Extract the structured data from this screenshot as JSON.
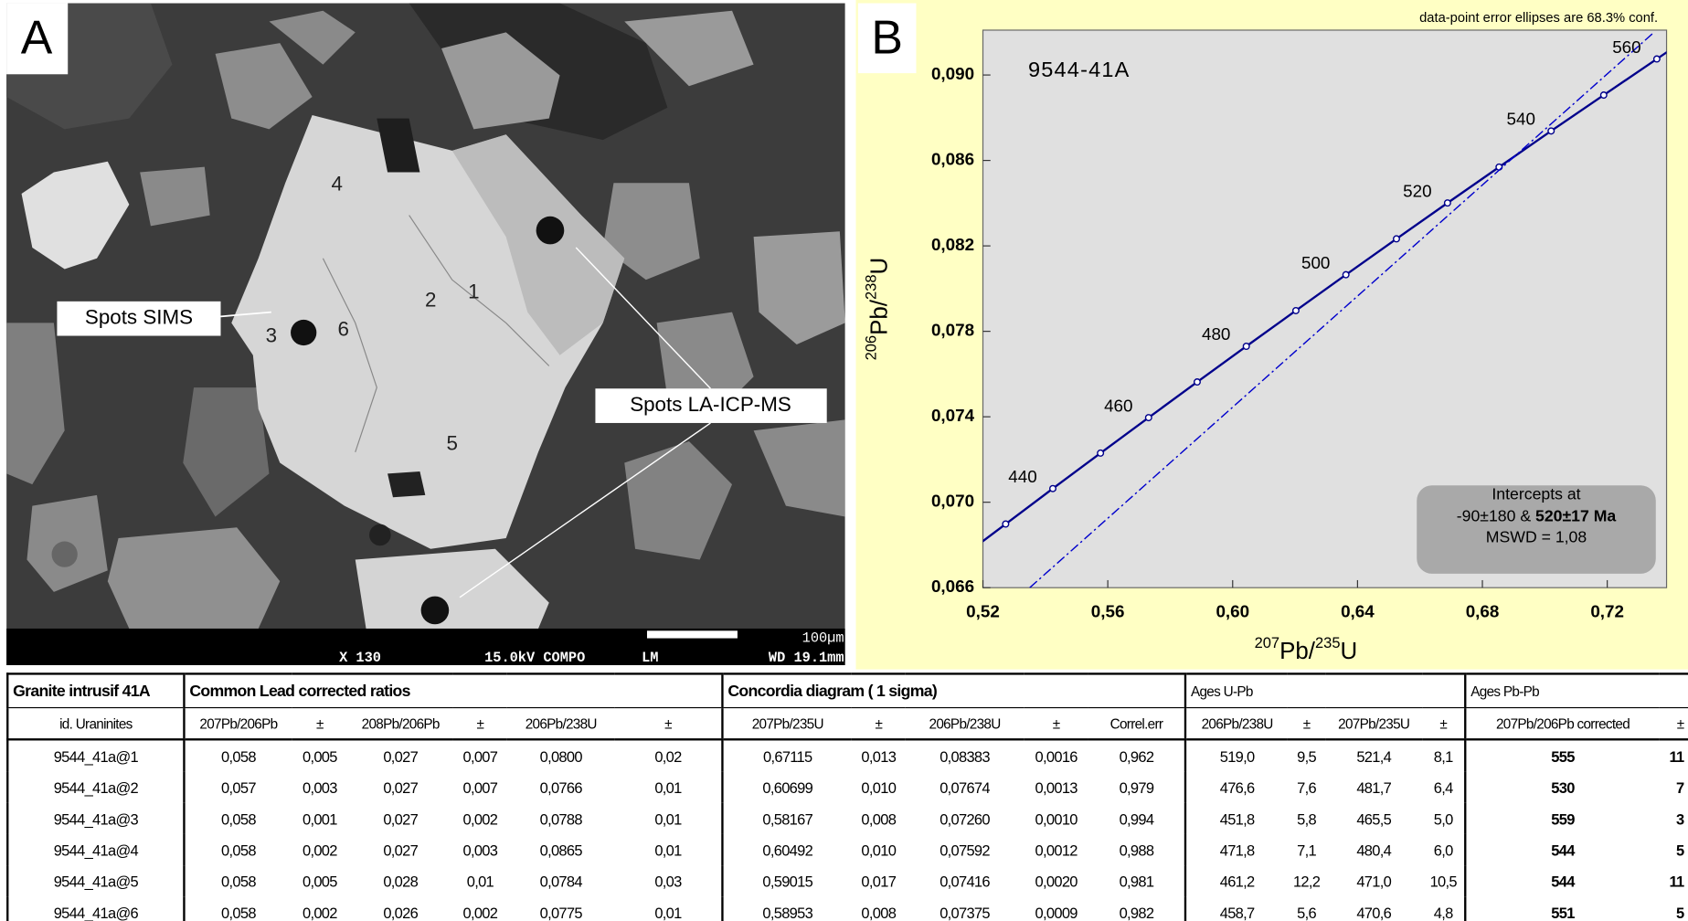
{
  "panel_a": {
    "label": "A",
    "spot_labels": [
      "Spots SIMS",
      "Spots LA-ICP-MS"
    ],
    "spot_numbers": [
      "1",
      "2",
      "3",
      "4",
      "5",
      "6"
    ],
    "scale_bar": "100µm",
    "info": [
      "X 130",
      "15.0kV COMPO",
      "LM",
      "WD 19.1mm"
    ]
  },
  "chart_data": {
    "type": "line",
    "panel_label": "B",
    "title": "9544-41A",
    "note": "data-point error ellipses are 68.3% conf.",
    "xlabel": [
      "207",
      "Pb/",
      "235",
      "U"
    ],
    "ylabel": [
      "206",
      "Pb/",
      "238",
      "U"
    ],
    "xlim": [
      0.52,
      0.739
    ],
    "ylim": [
      0.066,
      0.0921
    ],
    "xticks": [
      {
        "value": 0.52,
        "label": "0,52"
      },
      {
        "value": 0.56,
        "label": "0,56"
      },
      {
        "value": 0.6,
        "label": "0,60"
      },
      {
        "value": 0.64,
        "label": "0,64"
      },
      {
        "value": 0.68,
        "label": "0,68"
      },
      {
        "value": 0.72,
        "label": "0,72"
      }
    ],
    "yticks": [
      {
        "value": 0.066,
        "label": "0,066"
      },
      {
        "value": 0.07,
        "label": "0,070"
      },
      {
        "value": 0.074,
        "label": "0,074"
      },
      {
        "value": 0.078,
        "label": "0,078"
      },
      {
        "value": 0.082,
        "label": "0,082"
      },
      {
        "value": 0.086,
        "label": "0,086"
      },
      {
        "value": 0.09,
        "label": "0,090"
      }
    ],
    "series": [
      {
        "color": "#00008b",
        "ages": [
          430,
          440,
          450,
          460,
          470,
          480,
          490,
          500,
          510,
          520,
          530,
          540,
          550,
          560
        ],
        "x": [
          0.52728,
          0.54239,
          0.55766,
          0.57307,
          0.58864,
          0.60437,
          0.62025,
          0.63628,
          0.65247,
          0.66883,
          0.68535,
          0.70202,
          0.71887,
          0.73588
        ],
        "y": [
          0.06898,
          0.07064,
          0.0723,
          0.07396,
          0.07563,
          0.0773,
          0.07897,
          0.08065,
          0.08233,
          0.08401,
          0.08569,
          0.08738,
          0.08906,
          0.09075
        ],
        "labeled_ages": [
          440,
          460,
          480,
          500,
          520,
          540,
          560
        ]
      },
      {
        "color": "#0000cc",
        "dash": true,
        "x": [
          0.535,
          0.735
        ],
        "y": [
          0.066,
          0.092
        ]
      }
    ],
    "annotation": [
      "Intercepts at",
      "-90±180 & ",
      "520±17 Ma",
      "MSWD = 1,08"
    ]
  },
  "table": {
    "groups": [
      "Granite intrusif 41A",
      "Common Lead corrected ratios",
      "Concordia diagram ( 1 sigma)",
      "Ages U-Pb",
      "Ages Pb-Pb"
    ],
    "columns": [
      "id. Uraninites",
      "207Pb/206Pb",
      "±",
      "208Pb/206Pb",
      "±",
      "206Pb/238U",
      "±",
      "207Pb/235U",
      "±",
      "206Pb/238U",
      "±",
      "Correl.err",
      "206Pb/238U",
      "±",
      "207Pb/235U",
      "±",
      "207Pb/206Pb corrected",
      "±"
    ],
    "rows": [
      [
        "9544_41a@1",
        "0,058",
        "0,005",
        "0,027",
        "0,007",
        "0,0800",
        "0,02",
        "0,67115",
        "0,013",
        "0,08383",
        "0,0016",
        "0,962",
        "519,0",
        "9,5",
        "521,4",
        "8,1",
        "555",
        "11"
      ],
      [
        "9544_41a@2",
        "0,057",
        "0,003",
        "0,027",
        "0,007",
        "0,0766",
        "0,01",
        "0,60699",
        "0,010",
        "0,07674",
        "0,0013",
        "0,979",
        "476,6",
        "7,6",
        "481,7",
        "6,4",
        "530",
        "7"
      ],
      [
        "9544_41a@3",
        "0,058",
        "0,001",
        "0,027",
        "0,002",
        "0,0788",
        "0,01",
        "0,58167",
        "0,008",
        "0,07260",
        "0,0010",
        "0,994",
        "451,8",
        "5,8",
        "465,5",
        "5,0",
        "559",
        "3"
      ],
      [
        "9544_41a@4",
        "0,058",
        "0,002",
        "0,027",
        "0,003",
        "0,0865",
        "0,01",
        "0,60492",
        "0,010",
        "0,07592",
        "0,0012",
        "0,988",
        "471,8",
        "7,1",
        "480,4",
        "6,0",
        "544",
        "5"
      ],
      [
        "9544_41a@5",
        "0,058",
        "0,005",
        "0,028",
        "0,01",
        "0,0784",
        "0,03",
        "0,59015",
        "0,017",
        "0,07416",
        "0,0020",
        "0,981",
        "461,2",
        "12,2",
        "471,0",
        "10,5",
        "544",
        "11"
      ],
      [
        "9544_41a@6",
        "0,058",
        "0,002",
        "0,026",
        "0,002",
        "0,0775",
        "0,01",
        "0,58953",
        "0,008",
        "0,07375",
        "0,0009",
        "0,982",
        "458,7",
        "5,6",
        "470,6",
        "4,8",
        "551",
        "5"
      ]
    ]
  }
}
